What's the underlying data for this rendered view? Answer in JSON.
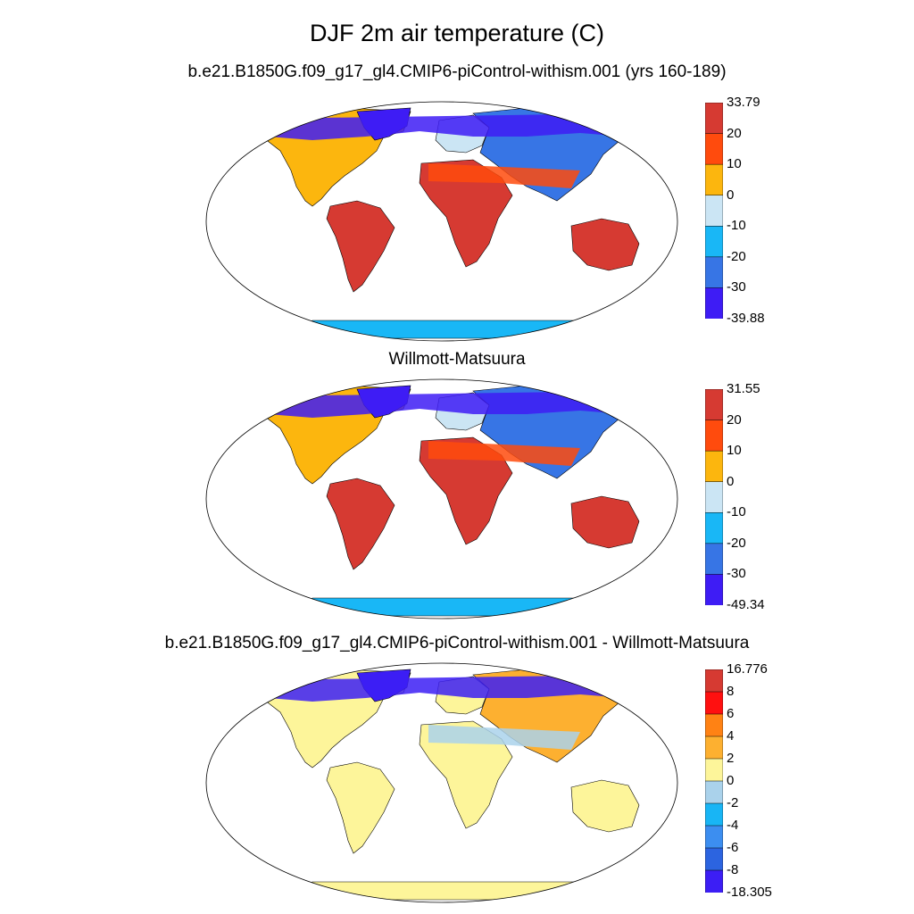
{
  "title": "DJF 2m air temperature (C)",
  "panels": [
    {
      "id": "model",
      "title": "b.e21.B1850G.f09_g17_gl4.CMIP6-piControl-withism.001 (yrs 160-189)",
      "colorbar": {
        "labels": [
          "33.79",
          "20",
          "10",
          "0",
          "-10",
          "-20",
          "-30",
          "-39.88"
        ],
        "colors": [
          "#d63a32",
          "#ff4b0d",
          "#fcb60e",
          "#cbe5f4",
          "#19b7f6",
          "#3775e5",
          "#3e1cf5"
        ]
      },
      "palette": {
        "polar": "#3e1cf5",
        "cold": "#3775e5",
        "cool": "#19b7f6",
        "cold_mild": "#cbe5f4",
        "mild": "#fcb60e",
        "warm": "#ff4b0d",
        "hot": "#d63a32"
      }
    },
    {
      "id": "obs",
      "title": "Willmott-Matsuura",
      "colorbar": {
        "labels": [
          "31.55",
          "20",
          "10",
          "0",
          "-10",
          "-20",
          "-30",
          "-49.34"
        ],
        "colors": [
          "#d63a32",
          "#ff4b0d",
          "#fcb60e",
          "#cbe5f4",
          "#19b7f6",
          "#3775e5",
          "#3e1cf5"
        ]
      },
      "palette": {
        "polar": "#3e1cf5",
        "cold": "#3775e5",
        "cool": "#19b7f6",
        "cold_mild": "#cbe5f4",
        "mild": "#fcb60e",
        "warm": "#ff4b0d",
        "hot": "#d63a32"
      }
    },
    {
      "id": "diff",
      "title": "b.e21.B1850G.f09_g17_gl4.CMIP6-piControl-withism.001 - Willmott-Matsuura",
      "colorbar": {
        "labels": [
          "16.776",
          "8",
          "6",
          "4",
          "2",
          "0",
          "-2",
          "-4",
          "-6",
          "-8",
          "-18.305"
        ],
        "colors": [
          "#d63a32",
          "#ff1010",
          "#ff8214",
          "#fdb030",
          "#fdf59a",
          "#aad2eb",
          "#18b5f5",
          "#3c8ef0",
          "#2c64e0",
          "#3c1ef5"
        ]
      },
      "palette": {
        "polar": "#3c1ef5",
        "cold": "#fdb030",
        "cool": "#fdf59a",
        "cold_mild": "#fdf59a",
        "mild": "#fdf59a",
        "warm": "#aad2eb",
        "hot": "#fdf59a"
      }
    }
  ]
}
